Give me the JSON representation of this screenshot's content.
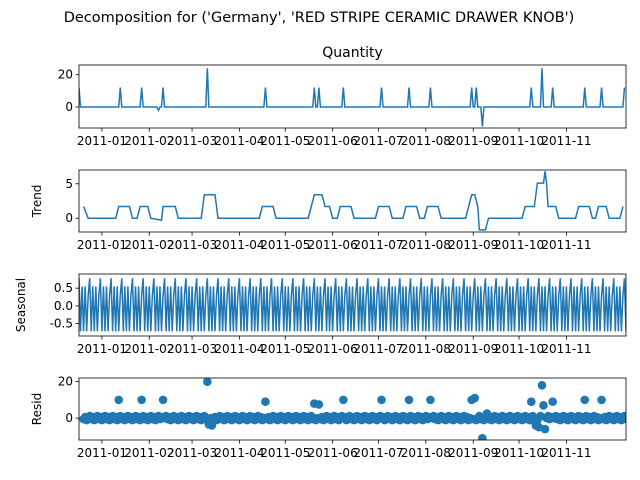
{
  "figure_title": "Decomposition for ('Germany', 'RED STRIPE CERAMIC DRAWER KNOB')",
  "colors": {
    "line": "#1f77b4",
    "marker": "#1f77b4",
    "axis": "#000000"
  },
  "x_tick_labels": [
    "2011-01",
    "2011-02",
    "2011-03",
    "2011-04",
    "2011-05",
    "2011-06",
    "2011-07",
    "2011-08",
    "2011-09",
    "2011-10",
    "2011-11"
  ],
  "chart_data": [
    {
      "type": "line",
      "panel": "quantity",
      "title": "Quantity",
      "ylabel": "",
      "x_range": [
        "2010-12-17",
        "2011-12-10"
      ],
      "ylim": [
        -13,
        26
      ],
      "y_ticks": [
        0,
        20
      ],
      "events": [
        {
          "x": "2010-12-17",
          "y": 12
        },
        {
          "x": "2011-01-13",
          "y": 12
        },
        {
          "x": "2011-01-27",
          "y": 12
        },
        {
          "x": "2011-02-07",
          "y": -2
        },
        {
          "x": "2011-02-10",
          "y": 12
        },
        {
          "x": "2011-03-11",
          "y": 24
        },
        {
          "x": "2011-04-18",
          "y": 12
        },
        {
          "x": "2011-05-20",
          "y": 12
        },
        {
          "x": "2011-05-23",
          "y": 12
        },
        {
          "x": "2011-06-08",
          "y": 12
        },
        {
          "x": "2011-07-03",
          "y": 12
        },
        {
          "x": "2011-07-21",
          "y": 12
        },
        {
          "x": "2011-08-04",
          "y": 12
        },
        {
          "x": "2011-08-31",
          "y": 12
        },
        {
          "x": "2011-09-03",
          "y": 12
        },
        {
          "x": "2011-09-07",
          "y": -12
        },
        {
          "x": "2011-10-09",
          "y": 12
        },
        {
          "x": "2011-10-16",
          "y": 24
        },
        {
          "x": "2011-10-23",
          "y": 12
        },
        {
          "x": "2011-11-13",
          "y": 12
        },
        {
          "x": "2011-11-24",
          "y": 12
        },
        {
          "x": "2011-12-09",
          "y": 12
        }
      ]
    },
    {
      "type": "line",
      "panel": "trend",
      "title": "",
      "ylabel": "Trend",
      "x_range": [
        "2010-12-17",
        "2011-12-10"
      ],
      "ylim": [
        -2.0,
        7.0
      ],
      "y_ticks": [
        0,
        5
      ],
      "segments": [
        {
          "x": "2010-12-20",
          "y": 1.7
        },
        {
          "x": "2010-12-23",
          "y": 0
        },
        {
          "x": "2011-01-10",
          "y": 0
        },
        {
          "x": "2011-01-12",
          "y": 1.7
        },
        {
          "x": "2011-01-19",
          "y": 1.7
        },
        {
          "x": "2011-01-21",
          "y": 0
        },
        {
          "x": "2011-01-24",
          "y": 0
        },
        {
          "x": "2011-01-26",
          "y": 1.7
        },
        {
          "x": "2011-01-31",
          "y": 1.7
        },
        {
          "x": "2011-02-02",
          "y": 0
        },
        {
          "x": "2011-02-09",
          "y": -0.3
        },
        {
          "x": "2011-02-10",
          "y": 1.7
        },
        {
          "x": "2011-02-18",
          "y": 1.7
        },
        {
          "x": "2011-02-20",
          "y": 0
        },
        {
          "x": "2011-03-07",
          "y": 0
        },
        {
          "x": "2011-03-09",
          "y": 3.4
        },
        {
          "x": "2011-03-16",
          "y": 3.4
        },
        {
          "x": "2011-03-18",
          "y": 0
        },
        {
          "x": "2011-04-14",
          "y": 0
        },
        {
          "x": "2011-04-16",
          "y": 1.7
        },
        {
          "x": "2011-04-23",
          "y": 1.7
        },
        {
          "x": "2011-04-25",
          "y": 0
        },
        {
          "x": "2011-05-16",
          "y": 0
        },
        {
          "x": "2011-05-18",
          "y": 1.7
        },
        {
          "x": "2011-05-20",
          "y": 3.4
        },
        {
          "x": "2011-05-25",
          "y": 3.4
        },
        {
          "x": "2011-05-27",
          "y": 1.7
        },
        {
          "x": "2011-05-30",
          "y": 1.7
        },
        {
          "x": "2011-06-01",
          "y": 0
        },
        {
          "x": "2011-06-04",
          "y": 0
        },
        {
          "x": "2011-06-06",
          "y": 1.7
        },
        {
          "x": "2011-06-13",
          "y": 1.7
        },
        {
          "x": "2011-06-15",
          "y": 0
        },
        {
          "x": "2011-06-29",
          "y": 0
        },
        {
          "x": "2011-07-01",
          "y": 1.7
        },
        {
          "x": "2011-07-08",
          "y": 1.7
        },
        {
          "x": "2011-07-10",
          "y": 0
        },
        {
          "x": "2011-07-17",
          "y": 0
        },
        {
          "x": "2011-07-19",
          "y": 1.7
        },
        {
          "x": "2011-07-26",
          "y": 1.7
        },
        {
          "x": "2011-07-28",
          "y": 0
        },
        {
          "x": "2011-07-31",
          "y": 0
        },
        {
          "x": "2011-08-02",
          "y": 1.7
        },
        {
          "x": "2011-08-09",
          "y": 1.7
        },
        {
          "x": "2011-08-11",
          "y": 0
        },
        {
          "x": "2011-08-27",
          "y": 0
        },
        {
          "x": "2011-08-29",
          "y": 1.7
        },
        {
          "x": "2011-08-31",
          "y": 3.4
        },
        {
          "x": "2011-09-02",
          "y": 3.4
        },
        {
          "x": "2011-09-04",
          "y": 1.7
        },
        {
          "x": "2011-09-05",
          "y": -1.7
        },
        {
          "x": "2011-09-09",
          "y": -1.7
        },
        {
          "x": "2011-09-11",
          "y": 0
        },
        {
          "x": "2011-10-03",
          "y": 0
        },
        {
          "x": "2011-10-05",
          "y": 1.7
        },
        {
          "x": "2011-10-11",
          "y": 1.7
        },
        {
          "x": "2011-10-13",
          "y": 5.1
        },
        {
          "x": "2011-10-17",
          "y": 5.1
        },
        {
          "x": "2011-10-18",
          "y": 6.8
        },
        {
          "x": "2011-10-19",
          "y": 5.1
        },
        {
          "x": "2011-10-20",
          "y": 1.7
        },
        {
          "x": "2011-10-25",
          "y": 1.7
        },
        {
          "x": "2011-10-27",
          "y": 0
        },
        {
          "x": "2011-11-07",
          "y": 0
        },
        {
          "x": "2011-11-09",
          "y": 1.7
        },
        {
          "x": "2011-11-16",
          "y": 1.7
        },
        {
          "x": "2011-11-18",
          "y": 0
        },
        {
          "x": "2011-11-20",
          "y": 0
        },
        {
          "x": "2011-11-22",
          "y": 1.7
        },
        {
          "x": "2011-11-27",
          "y": 1.7
        },
        {
          "x": "2011-11-29",
          "y": 0
        },
        {
          "x": "2011-12-06",
          "y": 0
        },
        {
          "x": "2011-12-08",
          "y": 1.7
        }
      ]
    },
    {
      "type": "line",
      "panel": "seasonal",
      "title": "",
      "ylabel": "Seasonal",
      "x_range": [
        "2010-12-17",
        "2011-12-10"
      ],
      "ylim": [
        -0.85,
        0.9
      ],
      "y_ticks": [
        -0.5,
        0.0,
        0.5
      ],
      "period_days": 7,
      "weekly_pattern": [
        0.78,
        -0.72,
        0.55,
        -0.72,
        0.55,
        -0.72,
        0.3
      ]
    },
    {
      "type": "scatter",
      "panel": "resid",
      "title": "",
      "ylabel": "Resid",
      "x_range": [
        "2010-12-17",
        "2011-12-10"
      ],
      "ylim": [
        -12,
        22
      ],
      "y_ticks": [
        0,
        20
      ],
      "baseline": 0,
      "outliers": [
        {
          "x": "2011-01-12",
          "y": 10
        },
        {
          "x": "2011-01-27",
          "y": 10
        },
        {
          "x": "2011-02-10",
          "y": 10
        },
        {
          "x": "2011-03-11",
          "y": 20
        },
        {
          "x": "2011-03-12",
          "y": -3.5
        },
        {
          "x": "2011-03-14",
          "y": -4
        },
        {
          "x": "2011-04-18",
          "y": 9
        },
        {
          "x": "2011-05-20",
          "y": 8
        },
        {
          "x": "2011-05-23",
          "y": 7.5
        },
        {
          "x": "2011-06-08",
          "y": 10
        },
        {
          "x": "2011-07-03",
          "y": 10
        },
        {
          "x": "2011-07-21",
          "y": 10
        },
        {
          "x": "2011-08-04",
          "y": 10
        },
        {
          "x": "2011-08-31",
          "y": 10
        },
        {
          "x": "2011-09-02",
          "y": 11
        },
        {
          "x": "2011-09-07",
          "y": -11
        },
        {
          "x": "2011-09-10",
          "y": 2.5
        },
        {
          "x": "2011-10-09",
          "y": 9
        },
        {
          "x": "2011-10-12",
          "y": -4
        },
        {
          "x": "2011-10-14",
          "y": -5
        },
        {
          "x": "2011-10-16",
          "y": 18
        },
        {
          "x": "2011-10-17",
          "y": 7
        },
        {
          "x": "2011-10-18",
          "y": -6
        },
        {
          "x": "2011-10-23",
          "y": 9
        },
        {
          "x": "2011-11-13",
          "y": 10
        },
        {
          "x": "2011-11-24",
          "y": 10
        }
      ]
    }
  ]
}
